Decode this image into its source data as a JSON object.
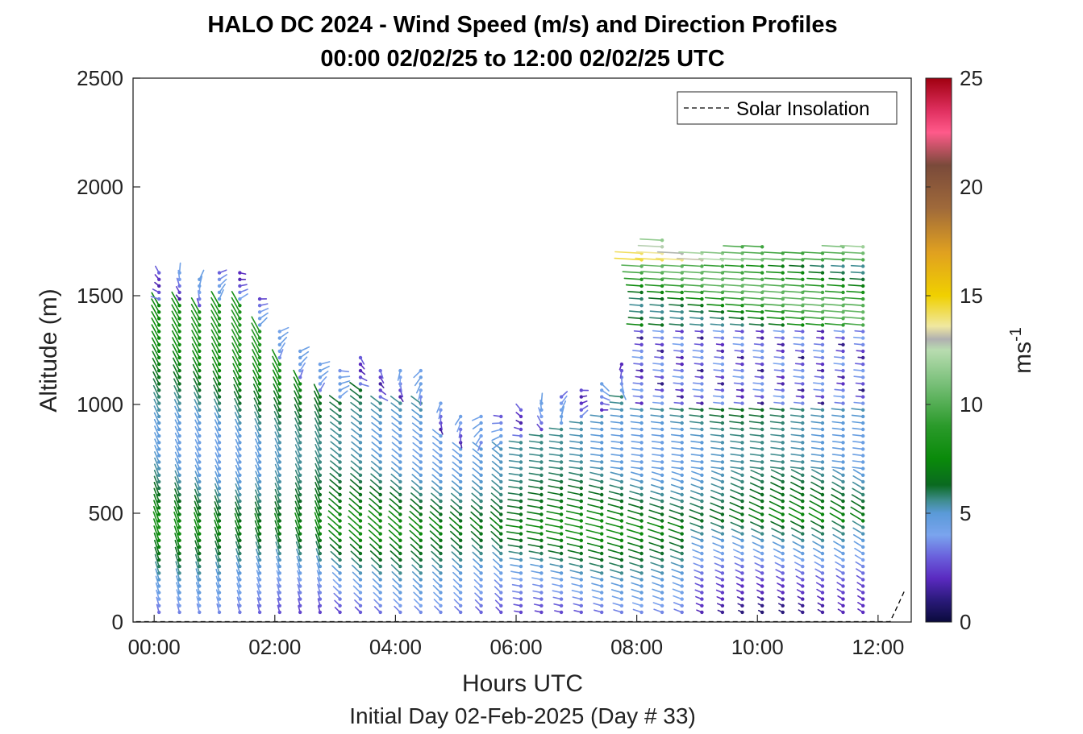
{
  "chart_data": {
    "type": "vector-field",
    "title": "HALO DC 2024 - Wind Speed (m/s) and Direction Profiles",
    "subtitle": "00:00 02/02/25 to 12:00 02/02/25  UTC",
    "xlabel": "Hours UTC",
    "ylabel": "Altitude (m)",
    "footer": "Initial Day 02-Feb-2025 (Day # 33)",
    "xlim": [
      -0.35,
      12.55
    ],
    "ylim": [
      0,
      2500
    ],
    "xticks": [
      {
        "value": 0,
        "label": "00:00"
      },
      {
        "value": 2,
        "label": "02:00"
      },
      {
        "value": 4,
        "label": "04:00"
      },
      {
        "value": 6,
        "label": "06:00"
      },
      {
        "value": 8,
        "label": "08:00"
      },
      {
        "value": 10,
        "label": "10:00"
      },
      {
        "value": 12,
        "label": "12:00"
      }
    ],
    "yticks": [
      {
        "value": 0,
        "label": "0"
      },
      {
        "value": 500,
        "label": "500"
      },
      {
        "value": 1000,
        "label": "1000"
      },
      {
        "value": 1500,
        "label": "1500"
      },
      {
        "value": 2000,
        "label": "2000"
      },
      {
        "value": 2500,
        "label": "2500"
      }
    ],
    "legend": {
      "entries": [
        "Solar Insolation"
      ],
      "placement": "top-right",
      "style": "dashed black line"
    },
    "colorbar": {
      "label": "ms-1",
      "label_base": "ms",
      "label_exp": "-1",
      "range": [
        0,
        25
      ],
      "ticks": [
        {
          "value": 0,
          "label": "0"
        },
        {
          "value": 5,
          "label": "5"
        },
        {
          "value": 10,
          "label": "10"
        },
        {
          "value": 15,
          "label": "15"
        },
        {
          "value": 20,
          "label": "20"
        },
        {
          "value": 25,
          "label": "25"
        }
      ],
      "stops": [
        {
          "v": 0,
          "c": "#0a0a3c"
        },
        {
          "v": 1,
          "c": "#2a1a7a"
        },
        {
          "v": 2,
          "c": "#5a2ac0"
        },
        {
          "v": 3,
          "c": "#6a60dc"
        },
        {
          "v": 4,
          "c": "#7aa4ee"
        },
        {
          "v": 5,
          "c": "#5a9ad8"
        },
        {
          "v": 5.6,
          "c": "#3e8c8c"
        },
        {
          "v": 6.3,
          "c": "#0a6a20"
        },
        {
          "v": 7.5,
          "c": "#0a8a0a"
        },
        {
          "v": 9,
          "c": "#2a9a2a"
        },
        {
          "v": 11,
          "c": "#7ac07a"
        },
        {
          "v": 12.5,
          "c": "#b8dcb0"
        },
        {
          "v": 13,
          "c": "#b0b0b0"
        },
        {
          "v": 13.6,
          "c": "#f0e8a0"
        },
        {
          "v": 15,
          "c": "#f0d000"
        },
        {
          "v": 17,
          "c": "#e0a020"
        },
        {
          "v": 19,
          "c": "#a06a3a"
        },
        {
          "v": 21,
          "c": "#7a4a3a"
        },
        {
          "v": 22.5,
          "c": "#ff5a8a"
        },
        {
          "v": 23.5,
          "c": "#e03060"
        },
        {
          "v": 25,
          "c": "#a00010"
        }
      ]
    },
    "series": [
      {
        "kind": "wind-profiles",
        "times_hours": [
          0.08,
          0.42,
          0.75,
          1.08,
          1.42,
          1.75,
          2.08,
          2.42,
          2.75,
          3.08,
          3.42,
          3.75,
          4.08,
          4.42,
          4.75,
          5.08,
          5.42,
          5.75,
          6.08,
          6.42,
          6.75,
          7.08,
          7.42,
          7.75,
          8.08,
          8.42,
          8.75,
          9.08,
          9.42,
          9.75,
          10.08,
          10.42,
          10.75,
          11.08,
          11.42,
          11.75
        ],
        "altitude_step_m": 30,
        "lowest_altitude_m": 45,
        "top_altitude_m": [
          1610,
          1610,
          1580,
          1620,
          1620,
          1500,
          1350,
          1250,
          1200,
          1180,
          1240,
          1170,
          1160,
          1170,
          1010,
          950,
          950,
          960,
          1000,
          1010,
          1040,
          1090,
          1120,
          1190,
          1720,
          1780,
          1700,
          1710,
          1710,
          1730,
          1730,
          1700,
          1700,
          1700,
          1730,
          1730
        ]
      },
      {
        "name": "Solar Insolation",
        "style": "dashed",
        "points": [
          [
            -0.3,
            2
          ],
          [
            12.2,
            2
          ],
          [
            12.3,
            60
          ],
          [
            12.45,
            150
          ]
        ]
      }
    ]
  }
}
